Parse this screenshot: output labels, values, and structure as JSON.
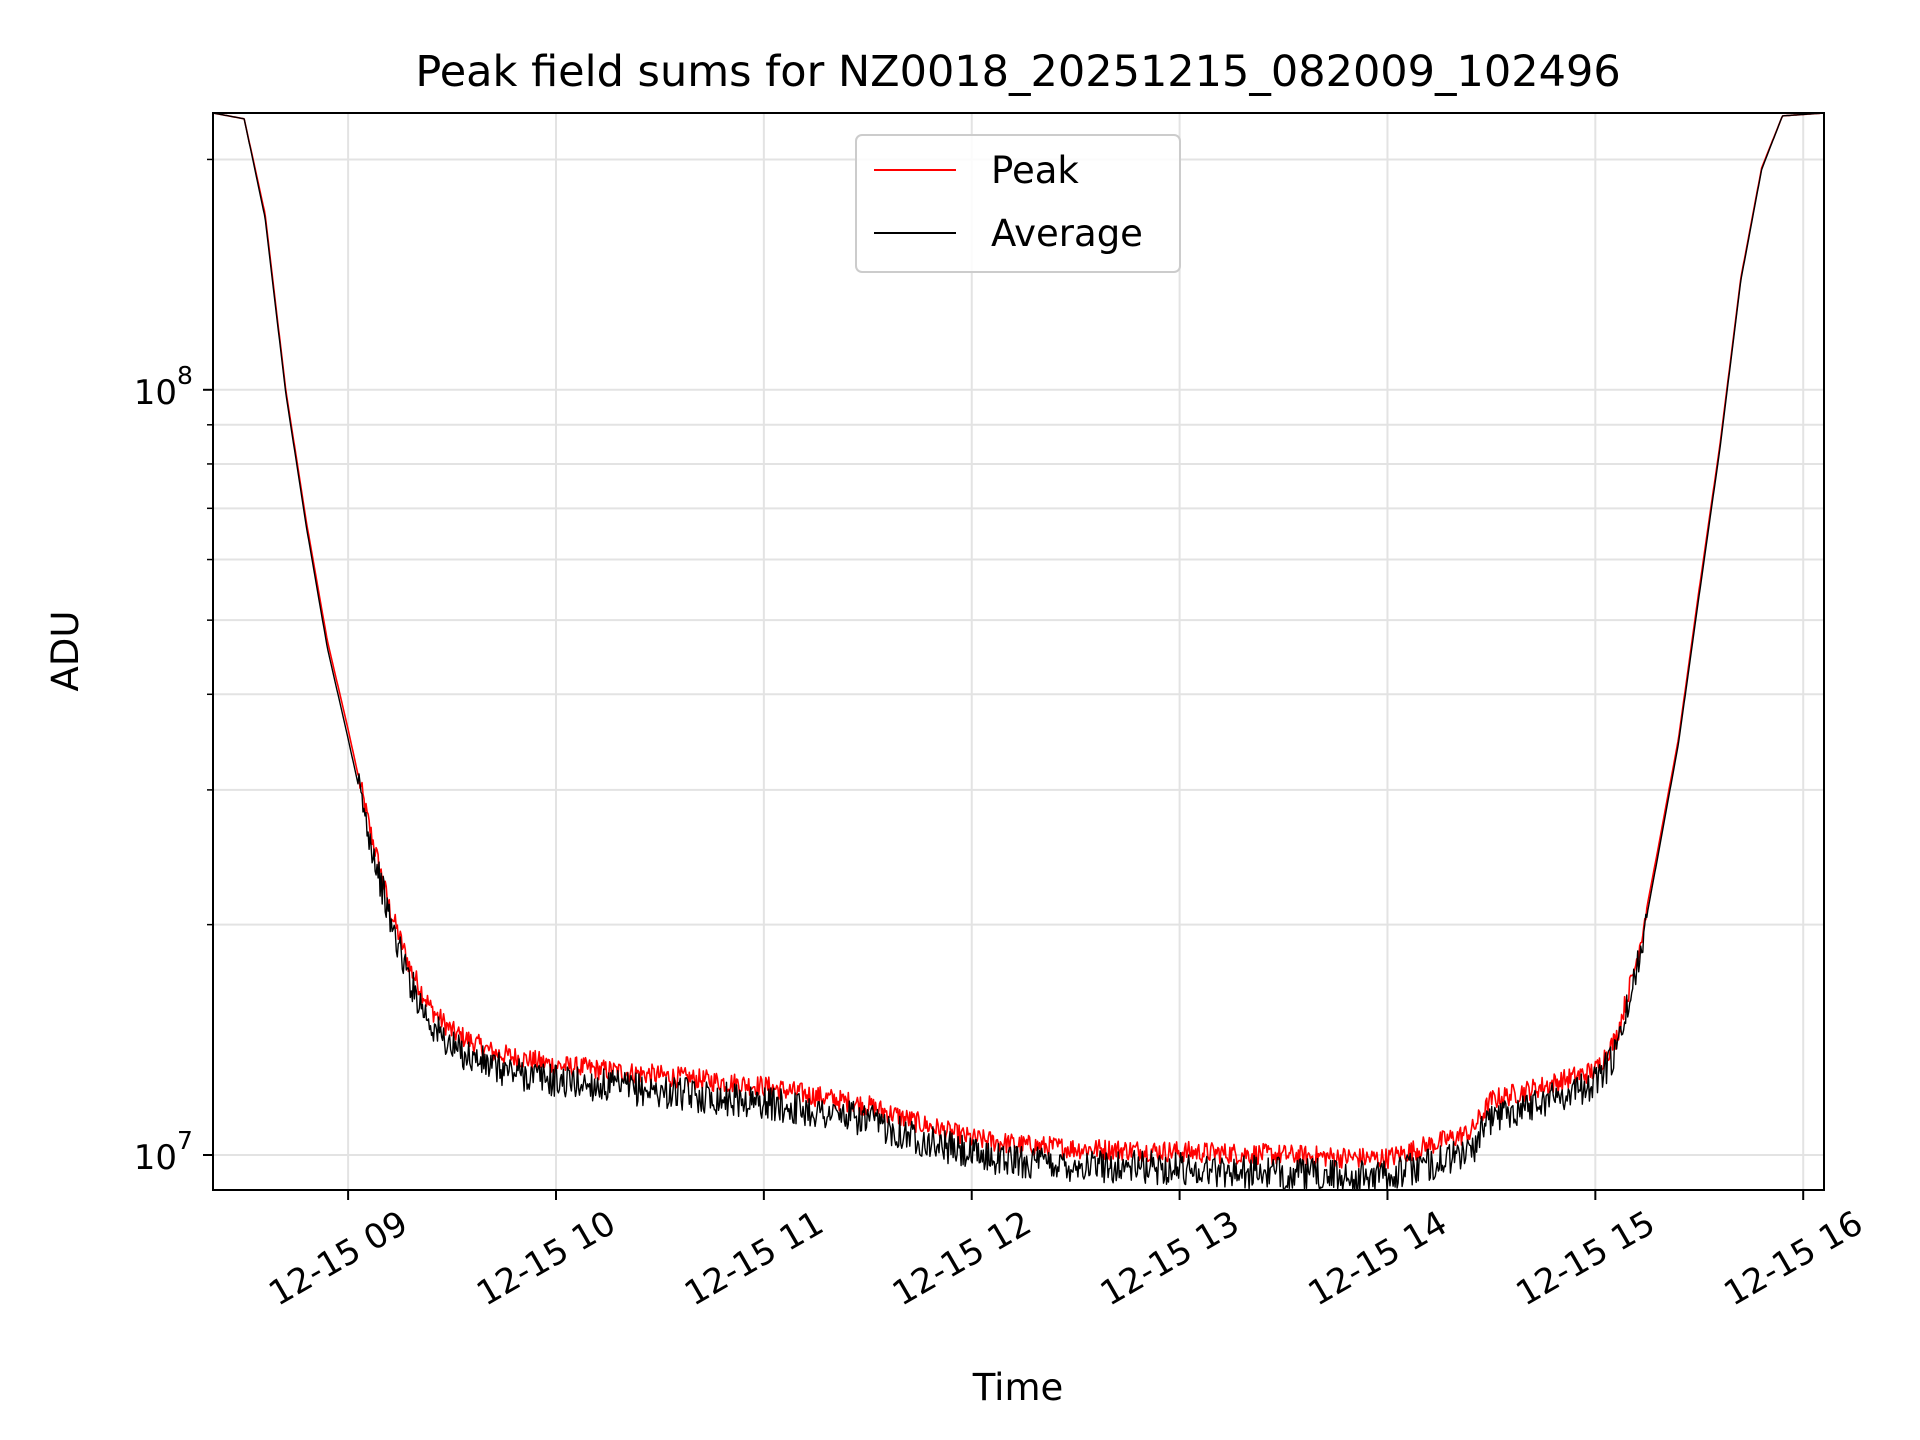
{
  "chart_data": {
    "type": "line",
    "title": "Peak field sums for NZ0018_20251215_082009_102496",
    "xlabel": "Time",
    "ylabel": "ADU",
    "yscale": "log",
    "grid": true,
    "legend_position": "top-center",
    "xlim_hours": [
      8.35,
      16.1
    ],
    "ylim": [
      9000000,
      230000000
    ],
    "x_ticks": [
      {
        "hour": 9,
        "label": "12-15 09"
      },
      {
        "hour": 10,
        "label": "12-15 10"
      },
      {
        "hour": 11,
        "label": "12-15 11"
      },
      {
        "hour": 12,
        "label": "12-15 12"
      },
      {
        "hour": 13,
        "label": "12-15 13"
      },
      {
        "hour": 14,
        "label": "12-15 14"
      },
      {
        "hour": 15,
        "label": "12-15 15"
      },
      {
        "hour": 16,
        "label": "12-15 16"
      }
    ],
    "y_major_ticks": [
      {
        "value": 10000000,
        "base": "10",
        "exp": "7"
      },
      {
        "value": 100000000,
        "base": "10",
        "exp": "8"
      }
    ],
    "y_minor_ticks": [
      20000000,
      30000000,
      40000000,
      50000000,
      60000000,
      70000000,
      80000000,
      90000000,
      200000000
    ],
    "series": [
      {
        "name": "Peak",
        "color": "#ff0000",
        "x_hours": [
          8.35,
          8.5,
          8.6,
          8.7,
          8.8,
          8.9,
          9.0,
          9.1,
          9.2,
          9.3,
          9.4,
          9.5,
          9.7,
          10.0,
          10.5,
          11.0,
          11.5,
          11.75,
          12.0,
          12.25,
          12.5,
          13.0,
          13.5,
          13.9,
          14.0,
          14.25,
          14.4,
          14.5,
          14.75,
          15.0,
          15.1,
          15.2,
          15.3,
          15.4,
          15.5,
          15.6,
          15.7,
          15.8,
          15.9,
          16.1
        ],
        "values_adu": [
          230000000,
          226000000,
          170000000,
          100000000,
          67000000,
          47000000,
          36000000,
          27000000,
          21000000,
          17500000,
          15500000,
          14500000,
          13600000,
          13100000,
          12700000,
          12300000,
          11600000,
          11000000,
          10500000,
          10300000,
          10200000,
          10100000,
          10000000,
          9900000,
          9900000,
          10400000,
          10700000,
          11800000,
          12300000,
          12900000,
          14200000,
          18000000,
          25000000,
          35000000,
          55000000,
          85000000,
          140000000,
          195000000,
          228000000,
          230000000
        ]
      },
      {
        "name": "Average",
        "color": "#000000",
        "x_hours": [
          8.35,
          8.5,
          8.6,
          8.7,
          8.8,
          8.9,
          9.0,
          9.1,
          9.2,
          9.3,
          9.4,
          9.5,
          9.7,
          10.0,
          10.5,
          11.0,
          11.5,
          11.75,
          12.0,
          12.25,
          12.5,
          13.0,
          13.5,
          13.9,
          14.0,
          14.25,
          14.4,
          14.5,
          14.75,
          15.0,
          15.1,
          15.2,
          15.3,
          15.4,
          15.5,
          15.6,
          15.7,
          15.8,
          15.9,
          16.1
        ],
        "values_adu": [
          230000000,
          226000000,
          168000000,
          99000000,
          66000000,
          46000000,
          35000000,
          26300000,
          20300000,
          16800000,
          14800000,
          13800000,
          13000000,
          12500000,
          12100000,
          11700000,
          11100000,
          10500000,
          10000000,
          9800000,
          9700000,
          9600000,
          9450000,
          9350000,
          9400000,
          9800000,
          10100000,
          11200000,
          11800000,
          12400000,
          13600000,
          17500000,
          24500000,
          34500000,
          54000000,
          84000000,
          139000000,
          194000000,
          228000000,
          230000000
        ]
      }
    ]
  }
}
